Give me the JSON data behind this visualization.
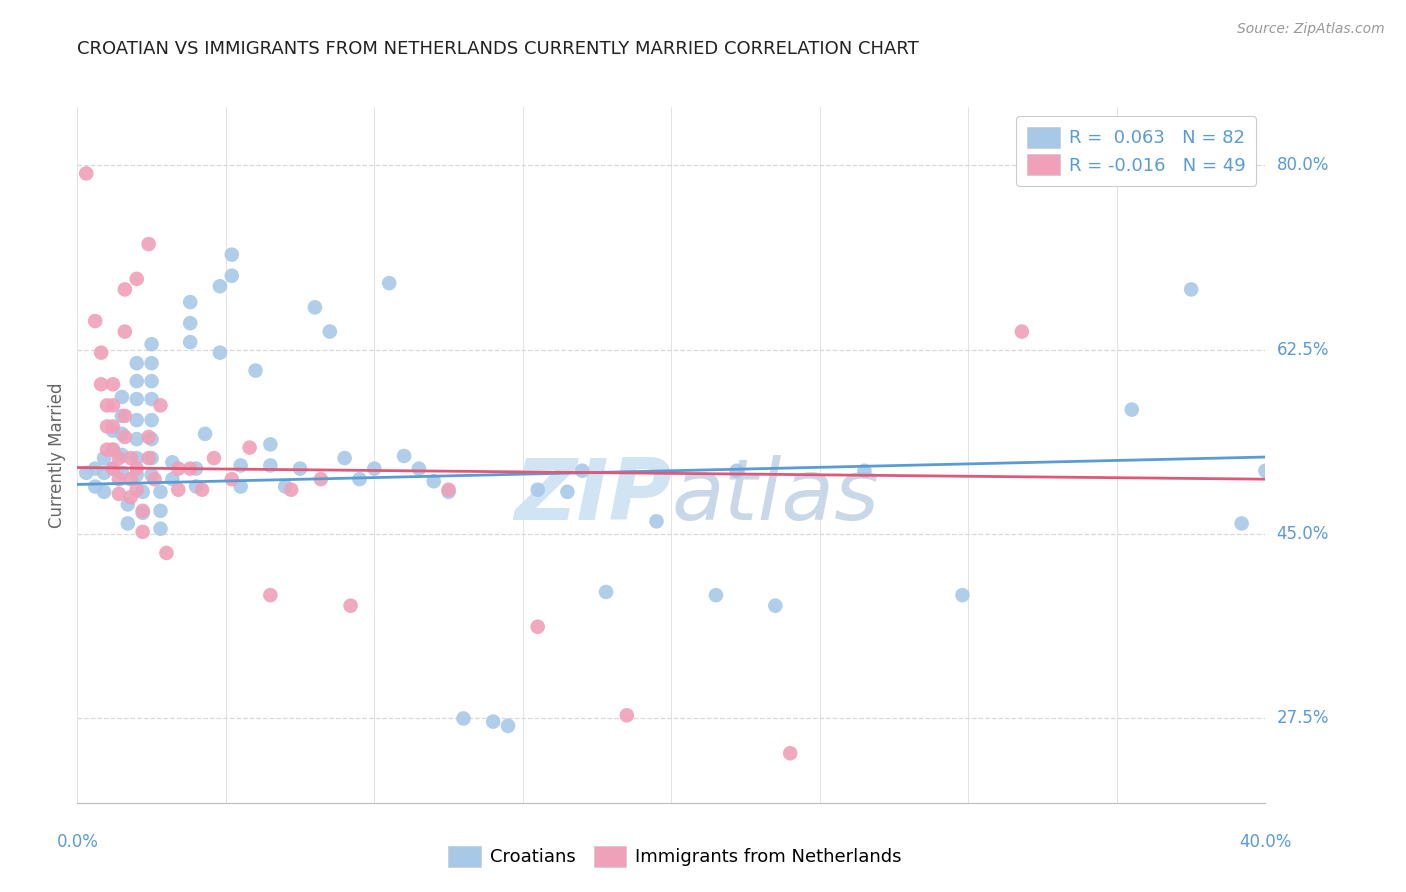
{
  "title": "CROATIAN VS IMMIGRANTS FROM NETHERLANDS CURRENTLY MARRIED CORRELATION CHART",
  "source": "Source: ZipAtlas.com",
  "ylabel": "Currently Married",
  "y_ticks_labels": [
    "80.0%",
    "62.5%",
    "45.0%",
    "27.5%"
  ],
  "y_tick_vals": [
    0.8,
    0.625,
    0.45,
    0.275
  ],
  "x_range": [
    0.0,
    0.4
  ],
  "y_range": [
    0.195,
    0.855
  ],
  "legend_blue_text": "R =  0.063   N = 82",
  "legend_pink_text": "R = -0.016   N = 49",
  "legend_label_blue": "Croatians",
  "legend_label_pink": "Immigrants from Netherlands",
  "blue_color": "#a8c8e8",
  "pink_color": "#f0a0b8",
  "blue_line_color": "#5b9bd5",
  "pink_line_color": "#e05878",
  "watermark_color": "#d0e4f4",
  "title_color": "#222222",
  "source_color": "#999999",
  "ylabel_color": "#666666",
  "tick_label_color": "#5b9bd5",
  "grid_color": "#d8d8d8",
  "blue_dots": [
    [
      0.003,
      0.508
    ],
    [
      0.006,
      0.495
    ],
    [
      0.006,
      0.512
    ],
    [
      0.009,
      0.522
    ],
    [
      0.009,
      0.508
    ],
    [
      0.009,
      0.49
    ],
    [
      0.012,
      0.548
    ],
    [
      0.012,
      0.53
    ],
    [
      0.012,
      0.512
    ],
    [
      0.015,
      0.58
    ],
    [
      0.015,
      0.562
    ],
    [
      0.015,
      0.545
    ],
    [
      0.015,
      0.525
    ],
    [
      0.015,
      0.508
    ],
    [
      0.017,
      0.478
    ],
    [
      0.017,
      0.46
    ],
    [
      0.02,
      0.612
    ],
    [
      0.02,
      0.595
    ],
    [
      0.02,
      0.578
    ],
    [
      0.02,
      0.558
    ],
    [
      0.02,
      0.54
    ],
    [
      0.02,
      0.522
    ],
    [
      0.02,
      0.506
    ],
    [
      0.022,
      0.49
    ],
    [
      0.022,
      0.47
    ],
    [
      0.025,
      0.63
    ],
    [
      0.025,
      0.612
    ],
    [
      0.025,
      0.595
    ],
    [
      0.025,
      0.578
    ],
    [
      0.025,
      0.558
    ],
    [
      0.025,
      0.54
    ],
    [
      0.025,
      0.522
    ],
    [
      0.025,
      0.506
    ],
    [
      0.028,
      0.49
    ],
    [
      0.028,
      0.472
    ],
    [
      0.028,
      0.455
    ],
    [
      0.032,
      0.518
    ],
    [
      0.032,
      0.502
    ],
    [
      0.038,
      0.67
    ],
    [
      0.038,
      0.65
    ],
    [
      0.038,
      0.632
    ],
    [
      0.04,
      0.512
    ],
    [
      0.04,
      0.495
    ],
    [
      0.043,
      0.545
    ],
    [
      0.048,
      0.685
    ],
    [
      0.048,
      0.622
    ],
    [
      0.052,
      0.715
    ],
    [
      0.052,
      0.695
    ],
    [
      0.055,
      0.515
    ],
    [
      0.055,
      0.495
    ],
    [
      0.06,
      0.605
    ],
    [
      0.065,
      0.535
    ],
    [
      0.065,
      0.515
    ],
    [
      0.07,
      0.495
    ],
    [
      0.075,
      0.512
    ],
    [
      0.08,
      0.665
    ],
    [
      0.085,
      0.642
    ],
    [
      0.09,
      0.522
    ],
    [
      0.095,
      0.502
    ],
    [
      0.1,
      0.512
    ],
    [
      0.105,
      0.688
    ],
    [
      0.11,
      0.524
    ],
    [
      0.115,
      0.512
    ],
    [
      0.12,
      0.5
    ],
    [
      0.125,
      0.49
    ],
    [
      0.13,
      0.275
    ],
    [
      0.14,
      0.272
    ],
    [
      0.145,
      0.268
    ],
    [
      0.155,
      0.492
    ],
    [
      0.165,
      0.49
    ],
    [
      0.17,
      0.51
    ],
    [
      0.178,
      0.395
    ],
    [
      0.195,
      0.462
    ],
    [
      0.215,
      0.392
    ],
    [
      0.222,
      0.51
    ],
    [
      0.235,
      0.382
    ],
    [
      0.265,
      0.51
    ],
    [
      0.298,
      0.392
    ],
    [
      0.355,
      0.568
    ],
    [
      0.375,
      0.682
    ],
    [
      0.392,
      0.46
    ],
    [
      0.4,
      0.51
    ]
  ],
  "pink_dots": [
    [
      0.003,
      0.792
    ],
    [
      0.006,
      0.652
    ],
    [
      0.008,
      0.622
    ],
    [
      0.008,
      0.592
    ],
    [
      0.01,
      0.572
    ],
    [
      0.01,
      0.552
    ],
    [
      0.01,
      0.53
    ],
    [
      0.012,
      0.592
    ],
    [
      0.012,
      0.572
    ],
    [
      0.012,
      0.552
    ],
    [
      0.012,
      0.53
    ],
    [
      0.012,
      0.512
    ],
    [
      0.014,
      0.522
    ],
    [
      0.014,
      0.502
    ],
    [
      0.014,
      0.488
    ],
    [
      0.016,
      0.682
    ],
    [
      0.016,
      0.642
    ],
    [
      0.016,
      0.562
    ],
    [
      0.016,
      0.542
    ],
    [
      0.018,
      0.522
    ],
    [
      0.018,
      0.502
    ],
    [
      0.018,
      0.485
    ],
    [
      0.02,
      0.692
    ],
    [
      0.02,
      0.512
    ],
    [
      0.02,
      0.492
    ],
    [
      0.022,
      0.472
    ],
    [
      0.022,
      0.452
    ],
    [
      0.024,
      0.725
    ],
    [
      0.024,
      0.542
    ],
    [
      0.024,
      0.522
    ],
    [
      0.026,
      0.502
    ],
    [
      0.028,
      0.572
    ],
    [
      0.03,
      0.432
    ],
    [
      0.034,
      0.512
    ],
    [
      0.034,
      0.492
    ],
    [
      0.038,
      0.512
    ],
    [
      0.042,
      0.492
    ],
    [
      0.046,
      0.522
    ],
    [
      0.052,
      0.502
    ],
    [
      0.058,
      0.532
    ],
    [
      0.065,
      0.392
    ],
    [
      0.072,
      0.492
    ],
    [
      0.082,
      0.502
    ],
    [
      0.092,
      0.382
    ],
    [
      0.125,
      0.492
    ],
    [
      0.155,
      0.362
    ],
    [
      0.185,
      0.278
    ],
    [
      0.24,
      0.242
    ],
    [
      0.318,
      0.642
    ]
  ],
  "blue_line_x": [
    0.0,
    0.4
  ],
  "blue_line_y": [
    0.497,
    0.523
  ],
  "pink_line_x": [
    0.0,
    0.4
  ],
  "pink_line_y": [
    0.513,
    0.502
  ],
  "background_color": "#ffffff",
  "x_minor_ticks": [
    0.0,
    0.05,
    0.1,
    0.15,
    0.2,
    0.25,
    0.3,
    0.35,
    0.4
  ]
}
